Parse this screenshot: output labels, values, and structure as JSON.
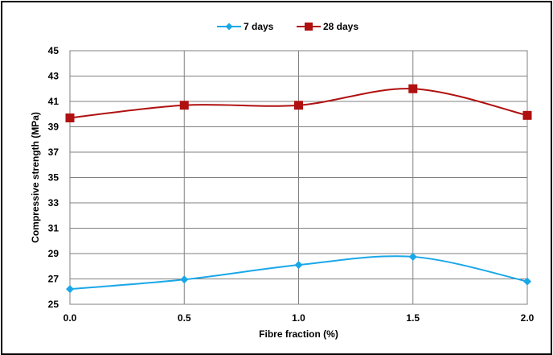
{
  "chart_data": {
    "type": "line",
    "xlabel": "Fibre fraction (%)",
    "ylabel": "Compressive strength (MPa)",
    "xlim": [
      0.0,
      2.0
    ],
    "ylim": [
      25,
      45
    ],
    "x_ticks": [
      "0.0",
      "0.5",
      "1.0",
      "1.5",
      "2.0"
    ],
    "y_ticks": [
      "25",
      "27",
      "29",
      "31",
      "33",
      "35",
      "37",
      "39",
      "41",
      "43",
      "45"
    ],
    "grid": true,
    "legend_position": "top-center",
    "x": [
      0.0,
      0.5,
      1.0,
      1.5,
      2.0
    ],
    "series": [
      {
        "name": "7 days",
        "color": "#1aa7e8",
        "marker": "diamond",
        "values": [
          26.2,
          26.95,
          28.1,
          28.75,
          26.8
        ]
      },
      {
        "name": "28 days",
        "color": "#b01010",
        "marker": "square",
        "values": [
          39.7,
          40.7,
          40.7,
          42.0,
          39.9
        ]
      }
    ]
  }
}
